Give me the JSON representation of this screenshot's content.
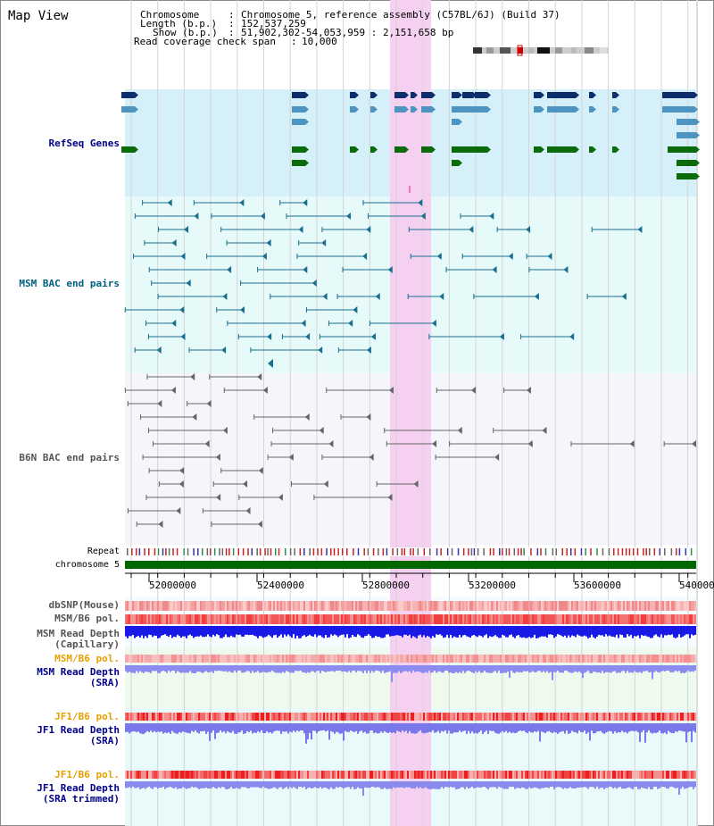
{
  "window": {
    "title": "Map View"
  },
  "header": {
    "chromosome_key": "Chromosome",
    "chromosome_value": "Chromosome 5, reference assembly (C57BL/6J) (Build 37)",
    "length_key": "Length (b.p.)",
    "length_value": "152,537,259",
    "show_key": "Show (b.p.)",
    "show_value": "51,902,302-54,053,959 : 2,151,658 bp",
    "coverage_key": "Read coverage check span",
    "coverage_value": "10,000"
  },
  "tracks": {
    "refseq": "RefSeq Genes",
    "msm_bac": "MSM BAC end pairs",
    "b6n_bac": "B6N BAC end pairs",
    "repeat": "Repeat",
    "chromosome": "chromosome 5",
    "dbsnp": "dbSNP(Mouse)",
    "msm_b6_pol": "MSM/B6 pol.",
    "msm_read_cap_1": "MSM Read Depth",
    "msm_read_cap_2": "(Capillary)",
    "msm_b6_pol_2": "MSM/B6 pol.",
    "msm_read_sra_1": "MSM Read Depth",
    "msm_read_sra_2": "(SRA)",
    "jf1_b6_pol": "JF1/B6 pol.",
    "jf1_read_sra_1": "JF1 Read Depth",
    "jf1_read_sra_2": "(SRA)",
    "jf1_b6_pol_2": "JF1/B6 pol.",
    "jf1_read_trim_1": "JF1 Read Depth",
    "jf1_read_trim_2": "(SRA trimmed)"
  },
  "axis": {
    "ticks": [
      "52000000",
      "52400000",
      "52800000",
      "53200000",
      "53600000",
      "54000000"
    ]
  },
  "colors": {
    "refseq_bg": "#d6f0fa",
    "msm_bg": "#e6fafa",
    "b6n_bg": "#f4f6fb",
    "highlight": "#f5d0f0",
    "chromosome_bar": "#006600"
  }
}
